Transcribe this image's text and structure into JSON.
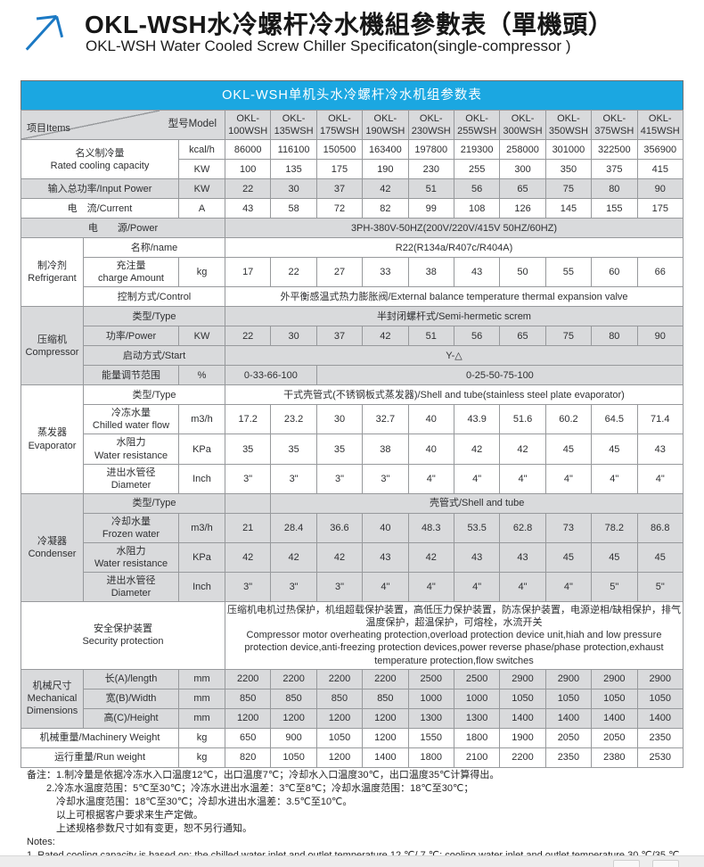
{
  "header": {
    "title_zh": "OKL-WSH水冷螺杆冷水機組參數表（單機頭）",
    "title_en": "OKL-WSH Water Cooled Screw Chiller Specificaton(single-compressor )",
    "logo_color": "#1b79c4"
  },
  "table": {
    "title": "OKL-WSH单机头水冷螺杆冷水机组参数表",
    "accent_color": "#1ba7e1",
    "shade_color": "#d9dadc",
    "corner": {
      "items_label": "项目Items",
      "model_label": "型号Model"
    },
    "rows": [
      {
        "shade": true,
        "cells": [
          {
            "corner": true,
            "cs": 3,
            "n": "corner-cell"
          },
          {
            "t": "OKL-\n100WSH",
            "n": "model-header"
          },
          {
            "t": "OKL-\n135WSH",
            "n": "model-header"
          },
          {
            "t": "OKL-\n175WSH",
            "n": "model-header"
          },
          {
            "t": "OKL-\n190WSH",
            "n": "model-header"
          },
          {
            "t": "OKL-\n230WSH",
            "n": "model-header"
          },
          {
            "t": "OKL-\n255WSH",
            "n": "model-header"
          },
          {
            "t": "OKL-\n300WSH",
            "n": "model-header"
          },
          {
            "t": "OKL-\n350WSH",
            "n": "model-header"
          },
          {
            "t": "OKL-\n375WSH",
            "n": "model-header"
          },
          {
            "t": "OKL-\n415WSH",
            "n": "model-header"
          }
        ]
      },
      {
        "cells": [
          {
            "t": "名义制冷量\nRated cooling capacity",
            "cs": 2,
            "rs": 2,
            "n": "row-label"
          },
          {
            "t": "kcal/h",
            "n": "unit-cell"
          },
          "86000",
          "116100",
          "150500",
          "163400",
          "197800",
          "219300",
          "258000",
          "301000",
          "322500",
          "356900"
        ]
      },
      {
        "cells": [
          {
            "t": "KW",
            "n": "unit-cell"
          },
          "100",
          "135",
          "175",
          "190",
          "230",
          "255",
          "300",
          "350",
          "375",
          "415"
        ]
      },
      {
        "shade": true,
        "cells": [
          {
            "t": "输入总功率/Input Power",
            "cs": 2,
            "n": "row-label"
          },
          {
            "t": "KW",
            "n": "unit-cell"
          },
          "22",
          "30",
          "37",
          "42",
          "51",
          "56",
          "65",
          "75",
          "80",
          "90"
        ]
      },
      {
        "cells": [
          {
            "t": "电　流/Current",
            "cs": 2,
            "n": "row-label"
          },
          {
            "t": "A",
            "n": "unit-cell"
          },
          "43",
          "58",
          "72",
          "82",
          "99",
          "108",
          "126",
          "145",
          "155",
          "175"
        ]
      },
      {
        "shade": true,
        "cells": [
          {
            "t": "电　　源/Power",
            "cs": 3,
            "n": "row-label"
          },
          {
            "t": "3PH-380V-50HZ(200V/220V/415V  50HZ/60HZ)",
            "cs": 10,
            "n": "value-span"
          }
        ]
      },
      {
        "cells": [
          {
            "t": "制冷剂\nRefrigerant",
            "rs": 3,
            "n": "group-label"
          },
          {
            "t": "名称/name",
            "cs": 2,
            "n": "row-label"
          },
          {
            "t": "R22(R134a/R407c/R404A)",
            "cs": 10,
            "n": "value-span"
          }
        ]
      },
      {
        "cells": [
          {
            "t": "充注量\ncharge Amount",
            "n": "row-label"
          },
          {
            "t": "kg",
            "n": "unit-cell"
          },
          "17",
          "22",
          "27",
          "33",
          "38",
          "43",
          "50",
          "55",
          "60",
          "66"
        ]
      },
      {
        "cells": [
          {
            "t": "控制方式/Control",
            "cs": 2,
            "n": "row-label"
          },
          {
            "t": "外平衡感温式热力膨胀阀/External balance temperature thermal expansion valve",
            "cs": 10,
            "n": "value-span"
          }
        ]
      },
      {
        "shade": true,
        "cells": [
          {
            "t": "压缩机\nCompressor",
            "rs": 4,
            "n": "group-label"
          },
          {
            "t": "类型/Type",
            "cs": 2,
            "n": "row-label"
          },
          {
            "t": "半封闭螺杆式/Semi-hermetic screm",
            "cs": 10,
            "n": "value-span"
          }
        ]
      },
      {
        "shade": true,
        "cells": [
          {
            "t": "功率/Power",
            "n": "row-label"
          },
          {
            "t": "KW",
            "n": "unit-cell"
          },
          "22",
          "30",
          "37",
          "42",
          "51",
          "56",
          "65",
          "75",
          "80",
          "90"
        ]
      },
      {
        "shade": true,
        "cells": [
          {
            "t": "启动方式/Start",
            "cs": 2,
            "n": "row-label"
          },
          {
            "t": "Y-△",
            "cs": 10,
            "n": "value-span"
          }
        ]
      },
      {
        "shade": true,
        "cells": [
          {
            "t": "能量调节范围",
            "n": "row-label"
          },
          {
            "t": "%",
            "n": "unit-cell"
          },
          {
            "t": "0-33-66-100",
            "cs": 2,
            "n": "value-span"
          },
          {
            "t": "0-25-50-75-100",
            "cs": 8,
            "n": "value-span"
          }
        ]
      },
      {
        "cells": [
          {
            "t": "蒸发器\nEvaporator",
            "rs": 4,
            "n": "group-label"
          },
          {
            "t": "类型/Type",
            "cs": 2,
            "n": "row-label"
          },
          {
            "t": "干式壳管式(不锈钢板式蒸发器)/Shell and tube(stainless steel plate evaporator)",
            "cs": 10,
            "n": "value-span"
          }
        ]
      },
      {
        "cells": [
          {
            "t": "冷冻水量\nChilled water flow",
            "n": "row-label"
          },
          {
            "t": "m3/h",
            "n": "unit-cell"
          },
          "17.2",
          "23.2",
          "30",
          "32.7",
          "40",
          "43.9",
          "51.6",
          "60.2",
          "64.5",
          "71.4"
        ]
      },
      {
        "cells": [
          {
            "t": "水阻力\nWater resistance",
            "n": "row-label"
          },
          {
            "t": "KPa",
            "n": "unit-cell"
          },
          "35",
          "35",
          "35",
          "38",
          "40",
          "42",
          "42",
          "45",
          "45",
          "43"
        ]
      },
      {
        "cells": [
          {
            "t": "进出水管径\nDiameter",
            "n": "row-label"
          },
          {
            "t": "Inch",
            "n": "unit-cell"
          },
          "3\"",
          "3\"",
          "3\"",
          "3\"",
          "4\"",
          "4\"",
          "4\"",
          "4\"",
          "4\"",
          "4\""
        ]
      },
      {
        "shade": true,
        "cells": [
          {
            "t": "冷凝器\nCondenser",
            "rs": 4,
            "n": "group-label"
          },
          {
            "t": "类型/Type",
            "cs": 2,
            "n": "row-label"
          },
          {
            "t": "",
            "n": "value-cell"
          },
          {
            "t": "壳管式/Shell and tube",
            "cs": 9,
            "n": "value-span"
          }
        ]
      },
      {
        "shade": true,
        "cells": [
          {
            "t": "冷却水量\nFrozen water",
            "n": "row-label"
          },
          {
            "t": "m3/h",
            "n": "unit-cell"
          },
          "21",
          "28.4",
          "36.6",
          "40",
          "48.3",
          "53.5",
          "62.8",
          "73",
          "78.2",
          "86.8"
        ]
      },
      {
        "shade": true,
        "cells": [
          {
            "t": "水阻力\nWater resistance",
            "n": "row-label"
          },
          {
            "t": "KPa",
            "n": "unit-cell"
          },
          "42",
          "42",
          "42",
          "43",
          "42",
          "43",
          "43",
          "45",
          "45",
          "45"
        ]
      },
      {
        "shade": true,
        "cells": [
          {
            "t": "进出水管径\nDiameter",
            "n": "row-label"
          },
          {
            "t": "Inch",
            "n": "unit-cell"
          },
          "3\"",
          "3\"",
          "3\"",
          "4\"",
          "4\"",
          "4\"",
          "4\"",
          "4\"",
          "5\"",
          "5\""
        ]
      },
      {
        "cells": [
          {
            "t": "安全保护装置\nSecurity protection",
            "cs": 3,
            "n": "row-label"
          },
          {
            "t": "压缩机电机过热保护，机组超载保护装置，高低压力保护装置，防冻保护装置，电源逆相/缺相保护，排气温度保护，超温保护，可熔栓，水流开关\n  Compressor motor overheating protection,overload protection device unit,hiah and low pressure protection device,anti-freezing protection devices,power reverse phase/phase protection,exhaust temperature protection,flow switches",
            "cs": 10,
            "n": "value-span",
            "cls": "left-cell"
          }
        ]
      },
      {
        "shade": true,
        "cells": [
          {
            "t": "机械尺寸\nMechanical\nDimensions",
            "rs": 3,
            "n": "group-label"
          },
          {
            "t": "长(A)/length",
            "n": "row-label"
          },
          {
            "t": "mm",
            "n": "unit-cell"
          },
          "2200",
          "2200",
          "2200",
          "2200",
          "2500",
          "2500",
          "2900",
          "2900",
          "2900",
          "2900"
        ]
      },
      {
        "shade": true,
        "cells": [
          {
            "t": "宽(B)/Width",
            "n": "row-label"
          },
          {
            "t": "mm",
            "n": "unit-cell"
          },
          "850",
          "850",
          "850",
          "850",
          "1000",
          "1000",
          "1050",
          "1050",
          "1050",
          "1050"
        ]
      },
      {
        "shade": true,
        "cells": [
          {
            "t": "高(C)/Height",
            "n": "row-label"
          },
          {
            "t": "mm",
            "n": "unit-cell"
          },
          "1200",
          "1200",
          "1200",
          "1200",
          "1300",
          "1300",
          "1400",
          "1400",
          "1400",
          "1400"
        ]
      },
      {
        "cells": [
          {
            "t": "机械重量/Machinery Weight",
            "cs": 2,
            "n": "row-label"
          },
          {
            "t": "kg",
            "n": "unit-cell"
          },
          "650",
          "900",
          "1050",
          "1200",
          "1550",
          "1800",
          "1900",
          "2050",
          "2050",
          "2350"
        ]
      },
      {
        "cells": [
          {
            "t": "运行重量/Run weight",
            "cs": 2,
            "n": "row-label"
          },
          {
            "t": "kg",
            "n": "unit-cell"
          },
          "820",
          "1050",
          "1200",
          "1400",
          "1800",
          "2100",
          "2200",
          "2350",
          "2380",
          "2530"
        ]
      }
    ]
  },
  "notes": {
    "lines": [
      "备注：1.制冷量是依据冷冻水入口温度12℃，出口温度7℃；冷却水入口温度30℃，出口温度35℃计算得出。",
      "　　2.冷冻水温度范围：5℃至30℃；冷冻水进出水温差：3℃至8℃；冷却水温度范围：18℃至30℃；",
      "　　　冷却水温度范围：18℃至30℃；冷却水进出水温差：3.5℃至10℃。",
      "　　　以上可根据客户要求来生产定做。",
      "　　　上述规格参数尺寸如有变更，恕不另行通知。",
      "Notes:",
      "1. Rated cooling capacity is based on: the chilled water inlet and outlet temperature 12 ℃/ 7 ℃; cooling water inlet and outlet temperature 30 ℃/35 ℃."
    ]
  }
}
